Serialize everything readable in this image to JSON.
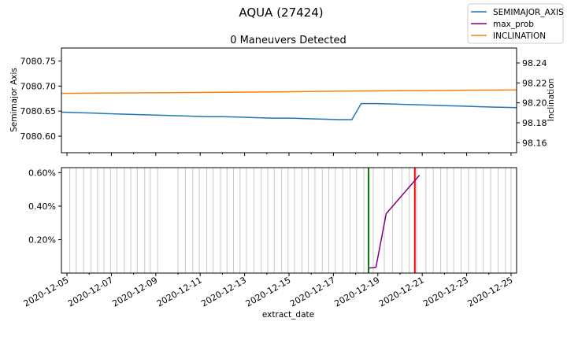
{
  "figure": {
    "suptitle": "AQUA (27424)",
    "title": "0 Maneuvers Detected",
    "xlabel": "extract_date"
  },
  "legend": [
    {
      "name": "SEMIMAJOR_AXIS",
      "color": "#1f77b4"
    },
    {
      "name": "max_prob",
      "color": "#800080"
    },
    {
      "name": "INCLINATION",
      "color": "#ff7f0e"
    }
  ],
  "chart_data": [
    {
      "type": "line",
      "panel": "top",
      "x_range": [
        "2020-12-04T18:00",
        "2020-12-25T06:00"
      ],
      "ylabel": "Semimajor Axis",
      "ylim": [
        7080.567,
        7080.776
      ],
      "yticks": [
        "7080.60",
        "7080.65",
        "7080.70",
        "7080.75"
      ],
      "y2label": "Inclination",
      "y2lim": [
        98.15,
        98.255
      ],
      "y2ticks": [
        "98.16",
        "98.18",
        "98.20",
        "98.22",
        "98.24"
      ],
      "series": [
        {
          "name": "SEMIMAJOR_AXIS",
          "color": "#1f77b4",
          "axis": "left",
          "points": [
            [
              "2020-12-04T18:00",
              7080.648
            ],
            [
              "2020-12-05T12:00",
              7080.647
            ],
            [
              "2020-12-06T06:00",
              7080.646
            ],
            [
              "2020-12-06T18:00",
              7080.645
            ],
            [
              "2020-12-07T12:00",
              7080.644
            ],
            [
              "2020-12-08T06:00",
              7080.643
            ],
            [
              "2020-12-09T00:00",
              7080.642
            ],
            [
              "2020-12-09T18:00",
              7080.641
            ],
            [
              "2020-12-10T12:00",
              7080.64
            ],
            [
              "2020-12-11T06:00",
              7080.639
            ],
            [
              "2020-12-12T00:00",
              7080.639
            ],
            [
              "2020-12-12T18:00",
              7080.638
            ],
            [
              "2020-12-13T12:00",
              7080.637
            ],
            [
              "2020-12-14T06:00",
              7080.636
            ],
            [
              "2020-12-15T00:00",
              7080.636
            ],
            [
              "2020-12-15T18:00",
              7080.635
            ],
            [
              "2020-12-16T12:00",
              7080.634
            ],
            [
              "2020-12-17T06:00",
              7080.633
            ],
            [
              "2020-12-17T20:00",
              7080.633
            ],
            [
              "2020-12-18T06:00",
              7080.665
            ],
            [
              "2020-12-19T00:00",
              7080.665
            ],
            [
              "2020-12-19T18:00",
              7080.664
            ],
            [
              "2020-12-20T12:00",
              7080.663
            ],
            [
              "2020-12-21T06:00",
              7080.662
            ],
            [
              "2020-12-22T00:00",
              7080.661
            ],
            [
              "2020-12-22T18:00",
              7080.66
            ],
            [
              "2020-12-23T12:00",
              7080.659
            ],
            [
              "2020-12-24T06:00",
              7080.658
            ],
            [
              "2020-12-25T06:00",
              7080.657
            ]
          ]
        },
        {
          "name": "INCLINATION",
          "color": "#ff7f0e",
          "axis": "right",
          "points": [
            [
              "2020-12-04T18:00",
              98.2095
            ],
            [
              "2020-12-08T00:00",
              98.21
            ],
            [
              "2020-12-11T12:00",
              98.2105
            ],
            [
              "2020-12-14T12:00",
              98.211
            ],
            [
              "2020-12-17T12:00",
              98.2117
            ],
            [
              "2020-12-20T12:00",
              98.2122
            ],
            [
              "2020-12-23T00:00",
              98.2127
            ],
            [
              "2020-12-25T06:00",
              98.213
            ]
          ]
        }
      ]
    },
    {
      "type": "line",
      "panel": "bottom",
      "x_range": [
        "2020-12-04T18:00",
        "2020-12-25T06:00"
      ],
      "ylim": [
        0.0,
        0.0063
      ],
      "yticks": [
        {
          "value": 0.002,
          "label": "0.20%"
        },
        {
          "value": 0.004,
          "label": "0.40%"
        },
        {
          "value": 0.006,
          "label": "0.60%"
        }
      ],
      "xticks": [
        "2020-12-05",
        "2020-12-07",
        "2020-12-09",
        "2020-12-11",
        "2020-12-13",
        "2020-12-15",
        "2020-12-17",
        "2020-12-19",
        "2020-12-21",
        "2020-12-23",
        "2020-12-25"
      ],
      "observation_lines": [
        "2020-12-05T03:00",
        "2020-12-05T10:00",
        "2020-12-05T18:00",
        "2020-12-06T02:00",
        "2020-12-06T09:00",
        "2020-12-06T16:00",
        "2020-12-06T23:00",
        "2020-12-07T06:00",
        "2020-12-07T14:00",
        "2020-12-07T21:00",
        "2020-12-08T04:00",
        "2020-12-08T12:00",
        "2020-12-08T18:00",
        "2020-12-09T02:00",
        "2020-12-10T00:00",
        "2020-12-10T08:00",
        "2020-12-10T16:00",
        "2020-12-10T23:00",
        "2020-12-11T07:00",
        "2020-12-11T14:00",
        "2020-12-11T22:00",
        "2020-12-12T05:00",
        "2020-12-12T12:00",
        "2020-12-12T19:00",
        "2020-12-13T02:00",
        "2020-12-13T10:00",
        "2020-12-13T18:00",
        "2020-12-14T01:00",
        "2020-12-14T08:00",
        "2020-12-14T16:00",
        "2020-12-14T23:00",
        "2020-12-15T06:00",
        "2020-12-15T14:00",
        "2020-12-15T21:00",
        "2020-12-16T04:00",
        "2020-12-16T12:00",
        "2020-12-16T19:00",
        "2020-12-17T02:00",
        "2020-12-17T10:00",
        "2020-12-17T18:00",
        "2020-12-18T01:00",
        "2020-12-18T09:00",
        "2020-12-18T19:00",
        "2020-12-19T07:00",
        "2020-12-19T16:00",
        "2020-12-20T02:00",
        "2020-12-20T10:00",
        "2020-12-20T18:00",
        "2020-12-21T04:00",
        "2020-12-21T12:00",
        "2020-12-21T20:00",
        "2020-12-22T03:00",
        "2020-12-22T10:00",
        "2020-12-22T18:00",
        "2020-12-23T02:00",
        "2020-12-23T10:00",
        "2020-12-23T18:00",
        "2020-12-24T02:00",
        "2020-12-24T10:00",
        "2020-12-24T18:00",
        "2020-12-25T00:00"
      ],
      "green_line": "2020-12-18T14:00",
      "red_line": "2020-12-20T16:00",
      "series": [
        {
          "name": "max_prob",
          "color": "#800080",
          "points": [
            [
              "2020-12-18T14:00",
              0.0003
            ],
            [
              "2020-12-18T22:00",
              0.00035
            ],
            [
              "2020-12-19T09:00",
              0.00355
            ],
            [
              "2020-12-20T21:00",
              0.00585
            ]
          ]
        }
      ]
    }
  ]
}
